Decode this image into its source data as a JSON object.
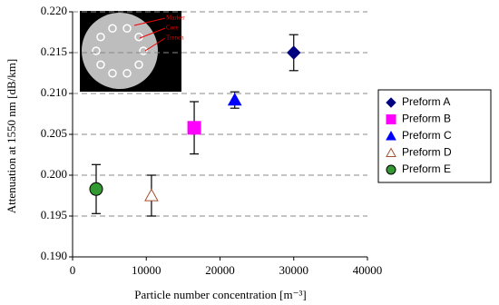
{
  "chart_data": {
    "type": "scatter",
    "xlabel": "Particle number concentration   [m⁻³]",
    "ylabel": "Attenuation at 1550 nm   [dB/km]",
    "xlim": [
      0,
      40000
    ],
    "xticks": [
      0,
      10000,
      20000,
      30000,
      40000
    ],
    "ylim": [
      0.19,
      0.22
    ],
    "yticks": [
      {
        "value": 0.19,
        "label": "0.190"
      },
      {
        "value": 0.195,
        "label": "0.195"
      },
      {
        "value": 0.2,
        "label": "0.200"
      },
      {
        "value": 0.205,
        "label": "0.205"
      },
      {
        "value": 0.21,
        "label": "0.210"
      },
      {
        "value": 0.215,
        "label": "0.215"
      },
      {
        "value": 0.22,
        "label": "0.220"
      }
    ],
    "grid": true,
    "legend": "right",
    "annotations": [
      "Marker",
      "Core",
      "Trench"
    ],
    "series": [
      {
        "name": "Preform A",
        "color": "#000080",
        "marker": "diamond",
        "filled": true,
        "x": [
          30000
        ],
        "values": [
          0.215
        ],
        "errors": [
          0.0022
        ]
      },
      {
        "name": "Preform B",
        "color": "#ff00ff",
        "marker": "square",
        "filled": true,
        "x": [
          16500
        ],
        "values": [
          0.2058
        ],
        "errors": [
          0.0032
        ]
      },
      {
        "name": "Preform C",
        "color": "#0000ff",
        "marker": "triangle",
        "filled": true,
        "x": [
          22000
        ],
        "values": [
          0.2092
        ],
        "errors": [
          0.001
        ]
      },
      {
        "name": "Preform D",
        "color": "#a0522d",
        "marker": "triangle",
        "filled": false,
        "x": [
          10700
        ],
        "values": [
          0.1975
        ],
        "errors": [
          0.0025
        ]
      },
      {
        "name": "Preform E",
        "color": "#339933",
        "marker": "circle",
        "filled": true,
        "x": [
          3200
        ],
        "values": [
          0.1983
        ],
        "errors": [
          0.003
        ]
      }
    ]
  }
}
